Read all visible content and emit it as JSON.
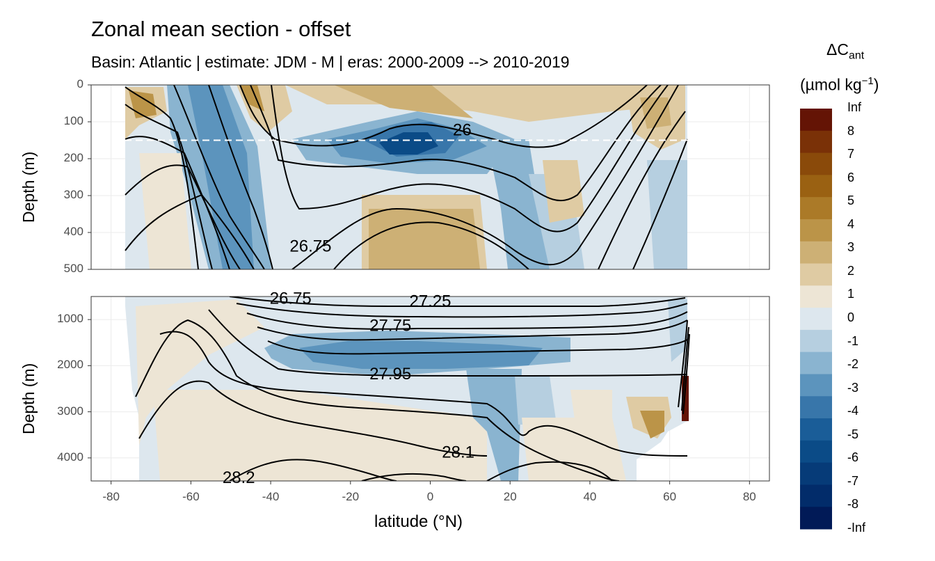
{
  "chart_data": {
    "type": "heatmap",
    "title": "Zonal mean section - offset",
    "subtitle": "Basin: Atlantic | estimate: JDM - M | eras: 2000-2009 --> 2010-2019",
    "xlabel": "latitude (°N)",
    "ylabel": "Depth (m)",
    "x_ticks": [
      "-80",
      "-60",
      "-40",
      "-20",
      "0",
      "20",
      "40",
      "60",
      "80"
    ],
    "xlim": [
      -85,
      85
    ],
    "panels": [
      {
        "name": "upper",
        "ylim": [
          0,
          500
        ],
        "y_ticks": [
          "0",
          "100",
          "200",
          "300",
          "400",
          "500"
        ]
      },
      {
        "name": "lower",
        "ylim": [
          500,
          4500
        ],
        "y_ticks": [
          "1000",
          "2000",
          "3000",
          "4000"
        ]
      }
    ],
    "reference_depth_m": 150,
    "isopycnal_labels": [
      {
        "text": "26",
        "lat": 8,
        "depth": 125
      },
      {
        "text": "26.75",
        "lat": -30,
        "depth": 440
      },
      {
        "text": "26.75",
        "lat": -35,
        "depth": 560
      },
      {
        "text": "27.25",
        "lat": 0,
        "depth": 620
      },
      {
        "text": "27.75",
        "lat": -10,
        "depth": 1150
      },
      {
        "text": "27.95",
        "lat": -10,
        "depth": 2200
      },
      {
        "text": "28.1",
        "lat": 7,
        "depth": 3900
      },
      {
        "text": "28.2",
        "lat": -48,
        "depth": 4450
      }
    ],
    "legend": {
      "title": "ΔC",
      "title_sub": "ant",
      "unit_prefix": "(µmol kg",
      "unit_sup": "−1",
      "unit_suffix": ")",
      "labels": [
        "Inf",
        "8",
        "7",
        "6",
        "5",
        "4",
        "3",
        "2",
        "1",
        "0",
        "-1",
        "-2",
        "-3",
        "-4",
        "-5",
        "-6",
        "-7",
        "-8",
        "-Inf"
      ],
      "colors": [
        "#641405",
        "#7a3107",
        "#8a4a0a",
        "#9a6112",
        "#ab7a28",
        "#bb9448",
        "#cdb075",
        "#dfcba3",
        "#ede5d5",
        "#dde7ee",
        "#b6cfe0",
        "#8ab4d0",
        "#5c94bd",
        "#3876aa",
        "#1a5d98",
        "#0b4b87",
        "#063b78",
        "#022c6a",
        "#011a57"
      ]
    }
  }
}
